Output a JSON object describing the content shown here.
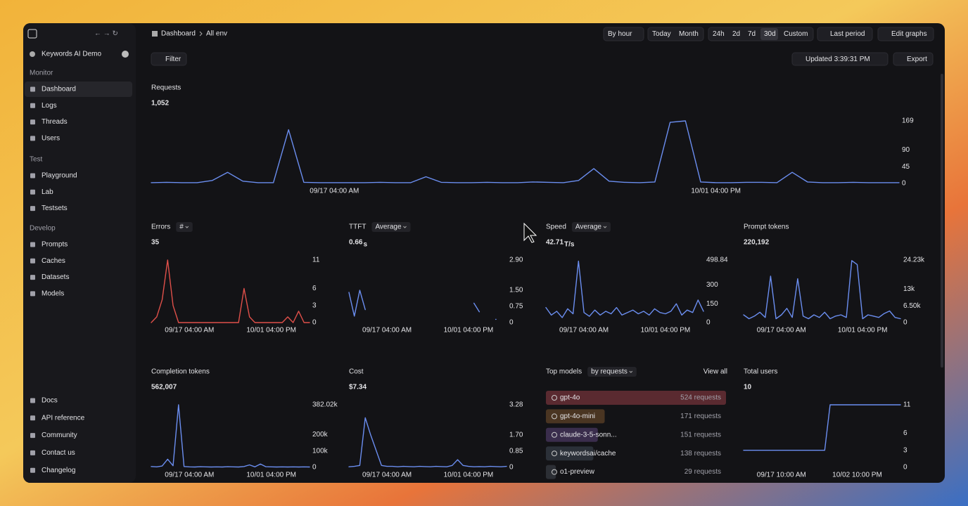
{
  "sidebar": {
    "workspace": "Keywords AI Demo",
    "sections": [
      {
        "label": "Monitor",
        "items": [
          "Dashboard",
          "Logs",
          "Threads",
          "Users"
        ]
      },
      {
        "label": "Test",
        "items": [
          "Playground",
          "Lab",
          "Testsets"
        ]
      },
      {
        "label": "Develop",
        "items": [
          "Prompts",
          "Caches",
          "Datasets",
          "Models"
        ]
      }
    ],
    "footer": [
      "Docs",
      "API reference",
      "Community",
      "Contact us",
      "Changelog"
    ]
  },
  "toolbar": {
    "breadcrumb": [
      "Dashboard",
      "All env"
    ],
    "granularity": "By hour",
    "ranges_a": [
      "Today",
      "Month"
    ],
    "ranges_b": [
      "24h",
      "2d",
      "7d",
      "30d",
      "Custom"
    ],
    "compare": "Last period",
    "edit": "Edit graphs",
    "filter": "Filter",
    "updated": "Updated 3:39:31 PM",
    "export": "Export"
  },
  "chart_data": [
    {
      "type": "line",
      "title": "Requests",
      "value": "1,052",
      "color": "#6b8ef0",
      "categories": [
        null,
        null,
        null,
        null,
        null,
        null,
        null,
        null,
        null,
        null,
        null,
        null,
        "09/17 04:00 AM",
        null,
        null,
        null,
        null,
        null,
        null,
        null,
        null,
        null,
        null,
        null,
        null,
        null,
        null,
        null,
        null,
        null,
        null,
        null,
        null,
        null,
        null,
        null,
        null,
        "10/01 04:00 PM",
        null,
        null,
        null,
        null,
        null,
        null,
        null,
        null,
        null,
        null,
        null,
        null
      ],
      "values": [
        2,
        3,
        2,
        2,
        8,
        30,
        6,
        2,
        2,
        145,
        3,
        2,
        2,
        2,
        2,
        3,
        2,
        2,
        18,
        3,
        2,
        2,
        3,
        2,
        2,
        4,
        3,
        2,
        8,
        40,
        6,
        3,
        2,
        4,
        165,
        169,
        4,
        2,
        2,
        3,
        3,
        2,
        30,
        4,
        2,
        2,
        3,
        2,
        2,
        2
      ],
      "ylim": [
        0,
        169
      ],
      "yticks": [
        0,
        45,
        90,
        169
      ]
    },
    {
      "type": "line",
      "title": "Errors",
      "dropdown": "#",
      "value": "35",
      "color": "#e0504a",
      "categories": [
        null,
        null,
        null,
        null,
        null,
        null,
        null,
        "09/17 04:00 AM",
        null,
        null,
        null,
        null,
        null,
        null,
        null,
        null,
        null,
        null,
        null,
        null,
        null,
        null,
        "10/01 04:00 PM",
        null,
        null,
        null,
        null,
        null,
        null,
        null
      ],
      "values": [
        0,
        1,
        4,
        11,
        3,
        0,
        0,
        0,
        0,
        0,
        0,
        0,
        0,
        0,
        0,
        0,
        0,
        6,
        1,
        0,
        0,
        0,
        0,
        0,
        0,
        1,
        0,
        2,
        0,
        0
      ],
      "ylim": [
        0,
        11
      ],
      "yticks": [
        0,
        3,
        6,
        11
      ]
    },
    {
      "type": "line",
      "title": "TTFT",
      "dropdown": "Average",
      "value": "0.66",
      "unit": "s",
      "color": "#6b8ef0",
      "categories": [
        null,
        null,
        null,
        null,
        null,
        null,
        null,
        "09/17 04:00 AM",
        null,
        null,
        null,
        null,
        null,
        null,
        null,
        null,
        null,
        null,
        null,
        null,
        null,
        null,
        "10/01 04:00 PM",
        null,
        null,
        null,
        null,
        null,
        null,
        null
      ],
      "values": [
        1.4,
        0.3,
        1.5,
        0.6,
        null,
        null,
        null,
        null,
        null,
        null,
        null,
        null,
        null,
        null,
        null,
        null,
        null,
        null,
        null,
        null,
        null,
        null,
        null,
        0.9,
        0.5,
        null,
        null,
        0.15,
        null,
        null
      ],
      "ylim": [
        0,
        2.9
      ],
      "yticks": [
        0,
        0.75,
        {
          "value": 1.5,
          "label": "1.50"
        },
        {
          "value": 2.9,
          "label": "2.90"
        }
      ]
    },
    {
      "type": "line",
      "title": "Speed",
      "dropdown": "Average",
      "value": "42.71",
      "unit": "T/s",
      "color": "#6b8ef0",
      "categories": [
        null,
        null,
        null,
        null,
        null,
        null,
        null,
        "09/17 04:00 AM",
        null,
        null,
        null,
        null,
        null,
        null,
        null,
        null,
        null,
        null,
        null,
        null,
        null,
        null,
        "10/01 04:00 PM",
        null,
        null,
        null,
        null,
        null,
        null,
        null
      ],
      "values": [
        120,
        60,
        90,
        40,
        110,
        70,
        490,
        80,
        50,
        100,
        60,
        90,
        70,
        120,
        60,
        80,
        100,
        70,
        90,
        60,
        110,
        80,
        70,
        90,
        150,
        60,
        100,
        80,
        180,
        90
      ],
      "ylim": [
        0,
        498.84
      ],
      "yticks": [
        0,
        150,
        300,
        498.84
      ]
    },
    {
      "type": "line",
      "title": "Prompt tokens",
      "value": "220,192",
      "color": "#6b8ef0",
      "categories": [
        null,
        null,
        null,
        null,
        null,
        null,
        null,
        "09/17 04:00 AM",
        null,
        null,
        null,
        null,
        null,
        null,
        null,
        null,
        null,
        null,
        null,
        null,
        null,
        null,
        "10/01 04:00 PM",
        null,
        null,
        null,
        null,
        null,
        null,
        null
      ],
      "values": [
        3000,
        1500,
        2500,
        4000,
        2000,
        18000,
        1500,
        3000,
        5500,
        2000,
        17000,
        2500,
        1500,
        3000,
        2000,
        4000,
        1500,
        2500,
        3000,
        2000,
        24000,
        22500,
        1500,
        3000,
        2500,
        2000,
        3500,
        4500,
        2000,
        1500
      ],
      "ylim": [
        0,
        24230
      ],
      "yticks": [
        0,
        {
          "value": 6500,
          "label": "6.50k"
        },
        {
          "value": 13000,
          "label": "13k"
        },
        {
          "value": 24230,
          "label": "24.23k"
        }
      ]
    },
    {
      "type": "line",
      "title": "Completion tokens",
      "value": "562,007",
      "color": "#6b8ef0",
      "categories": [
        null,
        null,
        null,
        null,
        null,
        null,
        null,
        "09/17 04:00 AM",
        null,
        null,
        null,
        null,
        null,
        null,
        null,
        null,
        null,
        null,
        null,
        null,
        null,
        null,
        "10/01 04:00 PM",
        null,
        null,
        null,
        null,
        null,
        null,
        null
      ],
      "values": [
        5000,
        3000,
        8000,
        50000,
        10000,
        382000,
        5000,
        3000,
        2000,
        4000,
        3000,
        2000,
        3000,
        2000,
        4000,
        3000,
        2000,
        5000,
        15000,
        3000,
        20000,
        4000,
        3000,
        2000,
        3000,
        2000,
        3000,
        2000,
        3000,
        2000
      ],
      "ylim": [
        0,
        382020
      ],
      "yticks": [
        0,
        {
          "value": 100000,
          "label": "100k"
        },
        {
          "value": 200000,
          "label": "200k"
        },
        {
          "value": 382020,
          "label": "382.02k"
        }
      ]
    },
    {
      "type": "line",
      "title": "Cost",
      "value": "$7.34",
      "color": "#6b8ef0",
      "categories": [
        null,
        null,
        null,
        null,
        null,
        null,
        null,
        "09/17 04:00 AM",
        null,
        null,
        null,
        null,
        null,
        null,
        null,
        null,
        null,
        null,
        null,
        null,
        null,
        null,
        "10/01 04:00 PM",
        null,
        null,
        null,
        null,
        null,
        null,
        null
      ],
      "values": [
        0.03,
        0.05,
        0.1,
        2.6,
        1.7,
        0.9,
        0.1,
        0.05,
        0.05,
        0.03,
        0.05,
        0.04,
        0.03,
        0.05,
        0.04,
        0.03,
        0.05,
        0.04,
        0.03,
        0.1,
        0.4,
        0.1,
        0.05,
        0.03,
        0.04,
        0.03,
        0.05,
        0.04,
        0.03,
        0.05
      ],
      "ylim": [
        0,
        3.28
      ],
      "yticks": [
        0,
        0.85,
        {
          "value": 1.7,
          "label": "1.70"
        },
        3.28
      ]
    },
    {
      "type": "bar",
      "title": "Top models",
      "dropdown": "by requests",
      "link": "View all",
      "categories": [
        "gpt-4o",
        "gpt-4o-mini",
        "claude-3-5-sonn...",
        "keywordsai/cache",
        "o1-preview"
      ],
      "values": [
        524,
        171,
        151,
        138,
        29
      ],
      "value_labels": [
        "524 requests",
        "171 requests",
        "151 requests",
        "138 requests",
        "29 requests"
      ],
      "colors": [
        "#5a2a30",
        "#4a3522",
        "#3a2d4c",
        "#2b3038",
        "#2c2f35"
      ]
    },
    {
      "type": "line",
      "title": "Total users",
      "value": "10",
      "color": "#6b8ef0",
      "categories": [
        null,
        null,
        null,
        null,
        null,
        null,
        null,
        "09/17 10:00 AM",
        null,
        null,
        null,
        null,
        null,
        null,
        null,
        null,
        null,
        null,
        null,
        null,
        null,
        "10/02 10:00 PM",
        null,
        null,
        null,
        null,
        null,
        null,
        null,
        null
      ],
      "values": [
        3,
        3,
        3,
        3,
        3,
        3,
        3,
        3,
        3,
        3,
        3,
        3,
        3,
        3,
        3,
        3,
        11,
        11,
        11,
        11,
        11,
        11,
        11,
        11,
        11,
        11,
        11,
        11,
        11,
        11
      ],
      "ylim": [
        0,
        11
      ],
      "yticks": [
        0,
        3,
        6,
        11
      ]
    }
  ]
}
